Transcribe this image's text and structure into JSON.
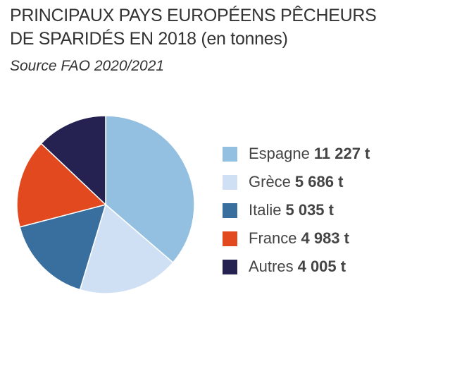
{
  "header": {
    "title_line1": "PRINCIPAUX PAYS EUROPÉENS PÊCHEURS",
    "title_line2": "DE SPARIDÉS EN 2018 (en tonnes)",
    "source": "Source FAO 2020/2021"
  },
  "chart_data": {
    "type": "pie",
    "title": "PRINCIPAUX PAYS EUROPÉENS PÊCHEURS DE SPARIDÉS EN 2018 (en tonnes)",
    "subtitle": "Source FAO 2020/2021",
    "unit": "t",
    "legend_position": "right",
    "categories": [
      "Espagne",
      "Grèce",
      "Italie",
      "France",
      "Autres"
    ],
    "values": [
      11227,
      5686,
      5035,
      4983,
      4005
    ],
    "value_labels": [
      "11 227 t",
      "5 686 t",
      "5 035 t",
      "4 983 t",
      "4 005 t"
    ],
    "colors": [
      "#93bfe0",
      "#cfe0f4",
      "#386f9e",
      "#e2491f",
      "#252252"
    ]
  },
  "legend": {
    "items": [
      {
        "label": "Espagne",
        "value": "11 227 t",
        "color": "#93bfe0"
      },
      {
        "label": "Grèce",
        "value": "5 686 t",
        "color": "#cfe0f4"
      },
      {
        "label": "Italie",
        "value": "5 035 t",
        "color": "#386f9e"
      },
      {
        "label": "France",
        "value": "4 983 t",
        "color": "#e2491f"
      },
      {
        "label": "Autres",
        "value": "4 005 t",
        "color": "#252252"
      }
    ]
  }
}
